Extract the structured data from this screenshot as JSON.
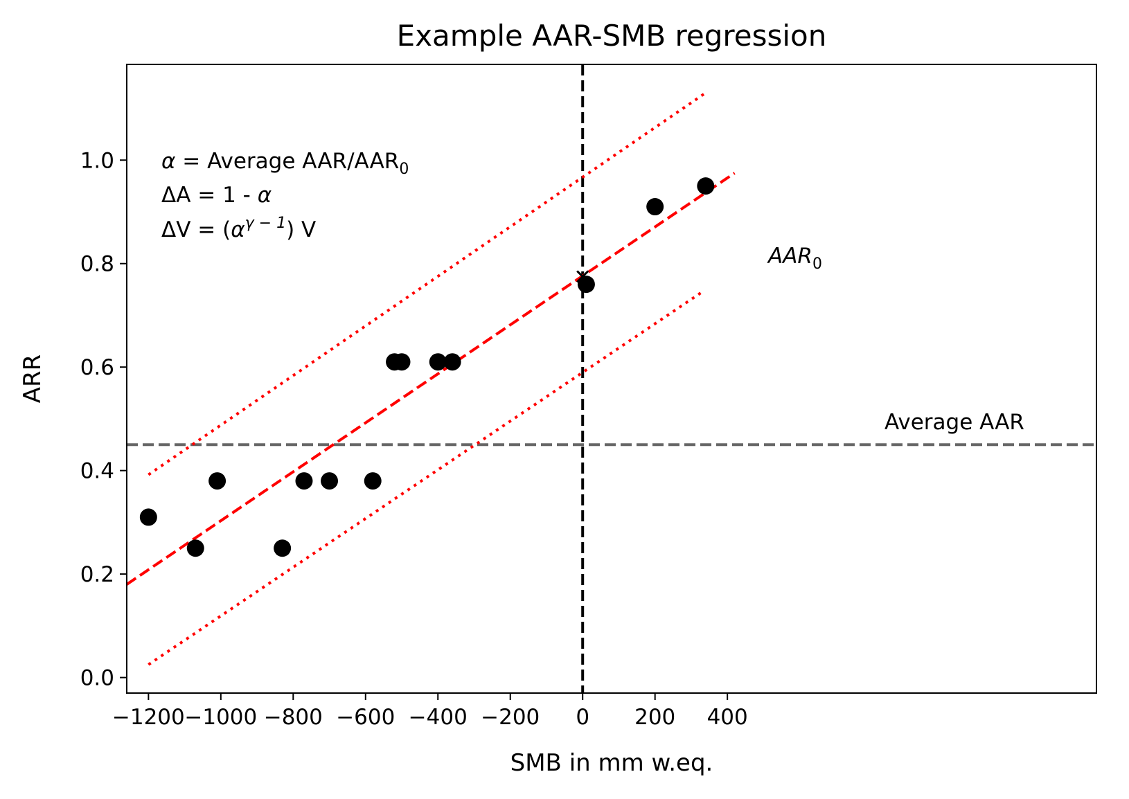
{
  "chart_data": {
    "type": "scatter",
    "title": "Example AAR-SMB regression",
    "xlabel": "SMB in mm w.eq.",
    "ylabel": "ARR",
    "xlim": [
      -1260,
      1420
    ],
    "ylim": [
      -0.03,
      1.185
    ],
    "xticks": [
      -1200,
      -1000,
      -800,
      -600,
      -400,
      -200,
      0,
      200,
      400
    ],
    "xtick_labels": [
      "−1200",
      "−1000",
      "−800",
      "−600",
      "−400",
      "−200",
      "0",
      "200",
      "400"
    ],
    "yticks": [
      0.0,
      0.2,
      0.4,
      0.6,
      0.8,
      1.0
    ],
    "ytick_labels": [
      "0.0",
      "0.2",
      "0.4",
      "0.6",
      "0.8",
      "1.0"
    ],
    "grid": false,
    "points": {
      "color": "#000000",
      "x": [
        -1200,
        -1070,
        -1010,
        -830,
        -770,
        -700,
        -580,
        -520,
        -500,
        -400,
        -360,
        10,
        200,
        340
      ],
      "y": [
        0.31,
        0.25,
        0.38,
        0.25,
        0.38,
        0.38,
        0.38,
        0.61,
        0.61,
        0.61,
        0.61,
        0.76,
        0.91,
        0.95
      ]
    },
    "regression_line": {
      "color": "#ff0000",
      "style": "dashed",
      "x": [
        -1260,
        420
      ],
      "y": [
        0.18,
        0.975
      ]
    },
    "upper_bound": {
      "color": "#ff0000",
      "style": "dotted",
      "x": [
        -1200,
        340
      ],
      "y": [
        0.392,
        1.13
      ]
    },
    "lower_bound": {
      "color": "#ff0000",
      "style": "dotted",
      "x": [
        -1200,
        330
      ],
      "y": [
        0.025,
        0.745
      ]
    },
    "average_aar_line": {
      "y": 0.45,
      "color": "#666666",
      "style": "dashed",
      "label": "Average AAR"
    },
    "zero_smb_line": {
      "x": 0,
      "color": "#000000",
      "style": "dashed"
    },
    "aar0_marker": {
      "x": 0,
      "y": 0.775,
      "marker": "x",
      "label": "AAR",
      "label_sub": "0"
    },
    "text_box": {
      "line1_sym": "α",
      "line1_text": " = Average AAR/AAR",
      "line1_sub": "0",
      "line2_text": "ΔA = 1 - ",
      "line2_sym": "α",
      "line3_a": "ΔV = (",
      "line3_sym": "α",
      "line3_sup": "γ − 1",
      "line3_b": ") V"
    }
  }
}
